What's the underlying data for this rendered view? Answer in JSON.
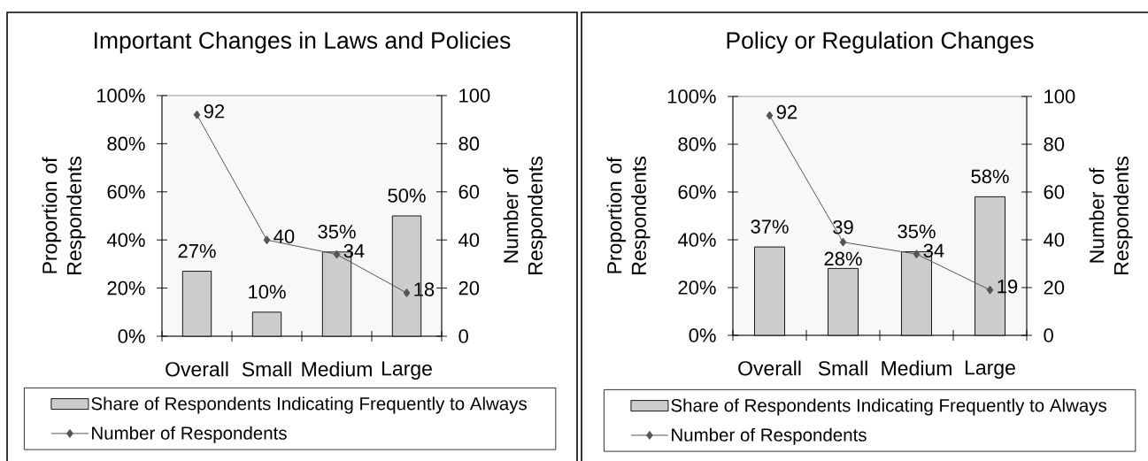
{
  "chart_data": [
    {
      "type": "bar",
      "title": "Important Changes in Laws and Policies",
      "categories": [
        "Overall",
        "Small",
        "Medium",
        "Large"
      ],
      "ylabel": "Proportion of Respondents",
      "y2label": "Number of Respondents",
      "ylim": [
        0,
        100
      ],
      "yticks": [
        {
          "value": 0,
          "label": "0%"
        },
        {
          "value": 20,
          "label": "20%"
        },
        {
          "value": 40,
          "label": "40%"
        },
        {
          "value": 60,
          "label": "60%"
        },
        {
          "value": 80,
          "label": "80%"
        },
        {
          "value": 100,
          "label": "100%"
        }
      ],
      "y2lim": [
        0,
        100
      ],
      "y2ticks": [
        0,
        20,
        40,
        60,
        80,
        100
      ],
      "legend": "bottom",
      "series": [
        {
          "name": "Share of Respondents Indicating Frequently to Always",
          "color": "#cccccc",
          "values": [
            27,
            10,
            35,
            50
          ],
          "value_labels": [
            "27%",
            "10%",
            "35%",
            "50%"
          ]
        },
        {
          "name": "Number of Respondents",
          "type": "line",
          "axis": "y2",
          "color": "#555555",
          "marker": "diamond",
          "values": [
            92,
            40,
            34,
            18
          ],
          "value_labels": [
            "92",
            "40",
            "34",
            "18"
          ]
        }
      ]
    },
    {
      "type": "bar",
      "title": "Policy or Regulation Changes",
      "categories": [
        "Overall",
        "Small",
        "Medium",
        "Large"
      ],
      "ylabel": "Proportion of Respondents",
      "y2label": "Number of Respondents",
      "ylim": [
        0,
        100
      ],
      "yticks": [
        {
          "value": 0,
          "label": "0%"
        },
        {
          "value": 20,
          "label": "20%"
        },
        {
          "value": 40,
          "label": "40%"
        },
        {
          "value": 60,
          "label": "60%"
        },
        {
          "value": 80,
          "label": "80%"
        },
        {
          "value": 100,
          "label": "100%"
        }
      ],
      "y2lim": [
        0,
        100
      ],
      "y2ticks": [
        0,
        20,
        40,
        60,
        80,
        100
      ],
      "legend": "bottom",
      "series": [
        {
          "name": "Share of Respondents Indicating Frequently to Always",
          "color": "#cccccc",
          "values": [
            37,
            28,
            35,
            58
          ],
          "value_labels": [
            "37%",
            "28%",
            "35%",
            "58%"
          ]
        },
        {
          "name": "Number of Respondents",
          "type": "line",
          "axis": "y2",
          "color": "#555555",
          "marker": "diamond",
          "values": [
            92,
            39,
            34,
            19
          ],
          "value_labels": [
            "92",
            "39",
            "34",
            "19"
          ]
        }
      ]
    }
  ]
}
